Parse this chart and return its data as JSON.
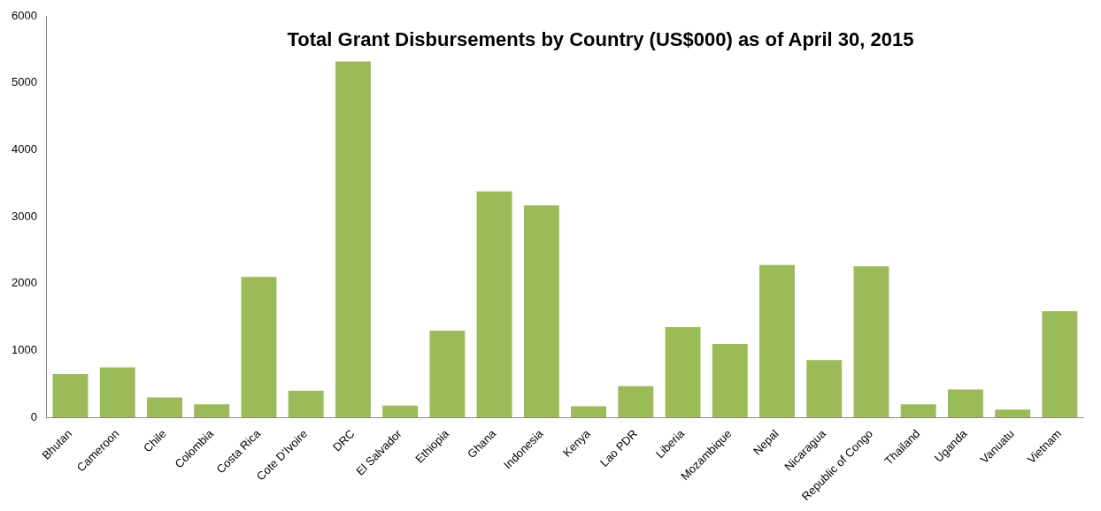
{
  "chart_data": {
    "type": "bar",
    "title": "Total Grant Disbursements by Country (US$000) as of April 30, 2015",
    "categories": [
      "Bhutan",
      "Cameroon",
      "Chile",
      "Colombia",
      "Costa Rica",
      "Cote D'Ivoire",
      "DRC",
      "El Salvador",
      "Ethiopia",
      "Ghana",
      "Indonesia",
      "Kenya",
      "Lao PDR",
      "Liberia",
      "Mozambique",
      "Nepal",
      "Nicaragua",
      "Republic of Congo",
      "Thailand",
      "Uganda",
      "Vanuatu",
      "Vietnam"
    ],
    "values": [
      650,
      750,
      300,
      200,
      2100,
      400,
      5320,
      180,
      1300,
      3380,
      3170,
      170,
      470,
      1350,
      1100,
      2280,
      860,
      2260,
      200,
      420,
      120,
      1590
    ],
    "color": "#9bbb59",
    "ylim": [
      0,
      6000
    ],
    "yticks": [
      0,
      1000,
      2000,
      3000,
      4000,
      5000,
      6000
    ],
    "grid": false,
    "legend": false
  }
}
